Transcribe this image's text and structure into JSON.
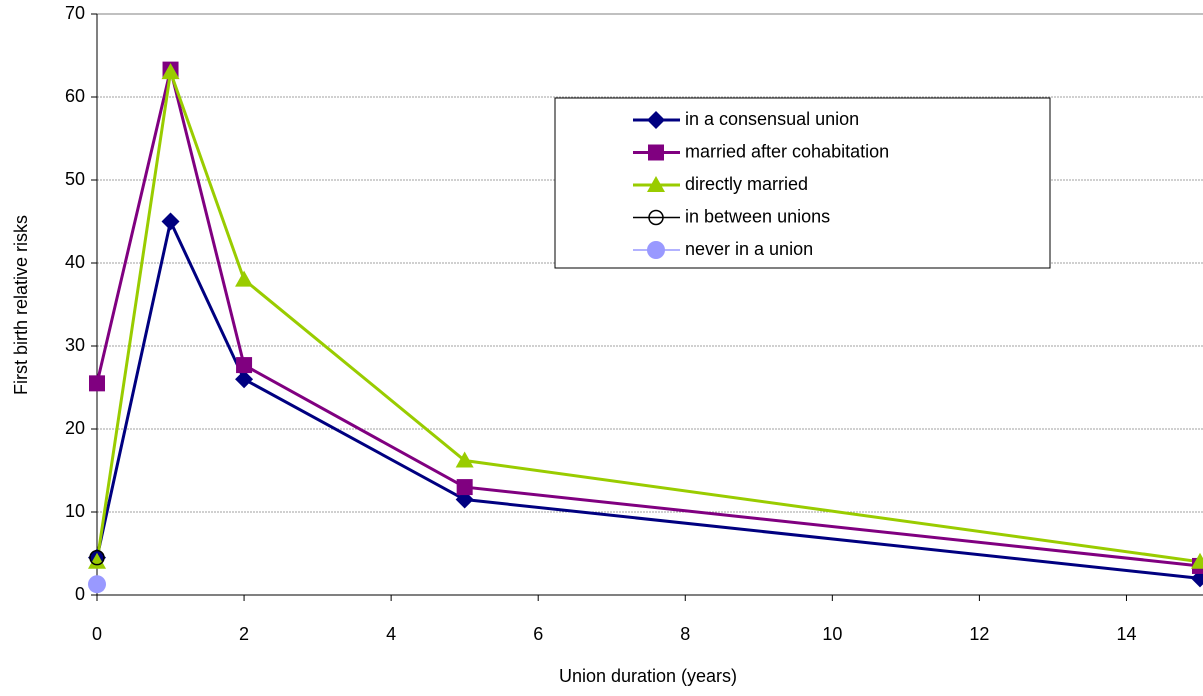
{
  "chart_data": {
    "type": "line",
    "x_label": "Union duration (years)",
    "y_label": "First birth relative risks",
    "x": [
      0,
      1,
      2,
      5,
      15
    ],
    "series": [
      {
        "name": "in a consensual union",
        "color": "#000080",
        "marker": "diamond",
        "values": [
          4.5,
          45,
          26,
          11.5,
          2
        ]
      },
      {
        "name": "married after cohabitation",
        "color": "#800080",
        "marker": "square",
        "values": [
          25.5,
          63.3,
          27.7,
          13,
          3.5
        ]
      },
      {
        "name": "directly married",
        "color": "#99cc00",
        "marker": "triangle",
        "values": [
          4,
          63,
          38,
          16.2,
          4
        ]
      },
      {
        "name": "in between unions",
        "color": "#000000",
        "marker": "open-circle",
        "values": [
          4.5,
          null,
          null,
          null,
          null
        ]
      },
      {
        "name": "never in a union",
        "color": "#9999ff",
        "marker": "circle",
        "values": [
          1.3,
          null,
          null,
          null,
          null
        ]
      }
    ],
    "xlim": [
      0,
      15
    ],
    "xticks": [
      0,
      2,
      4,
      6,
      8,
      10,
      12,
      14
    ],
    "ylim": [
      0,
      70
    ],
    "yticks": [
      0,
      10,
      20,
      30,
      40,
      50,
      60,
      70
    ],
    "grid": true,
    "legend": "upper right"
  }
}
